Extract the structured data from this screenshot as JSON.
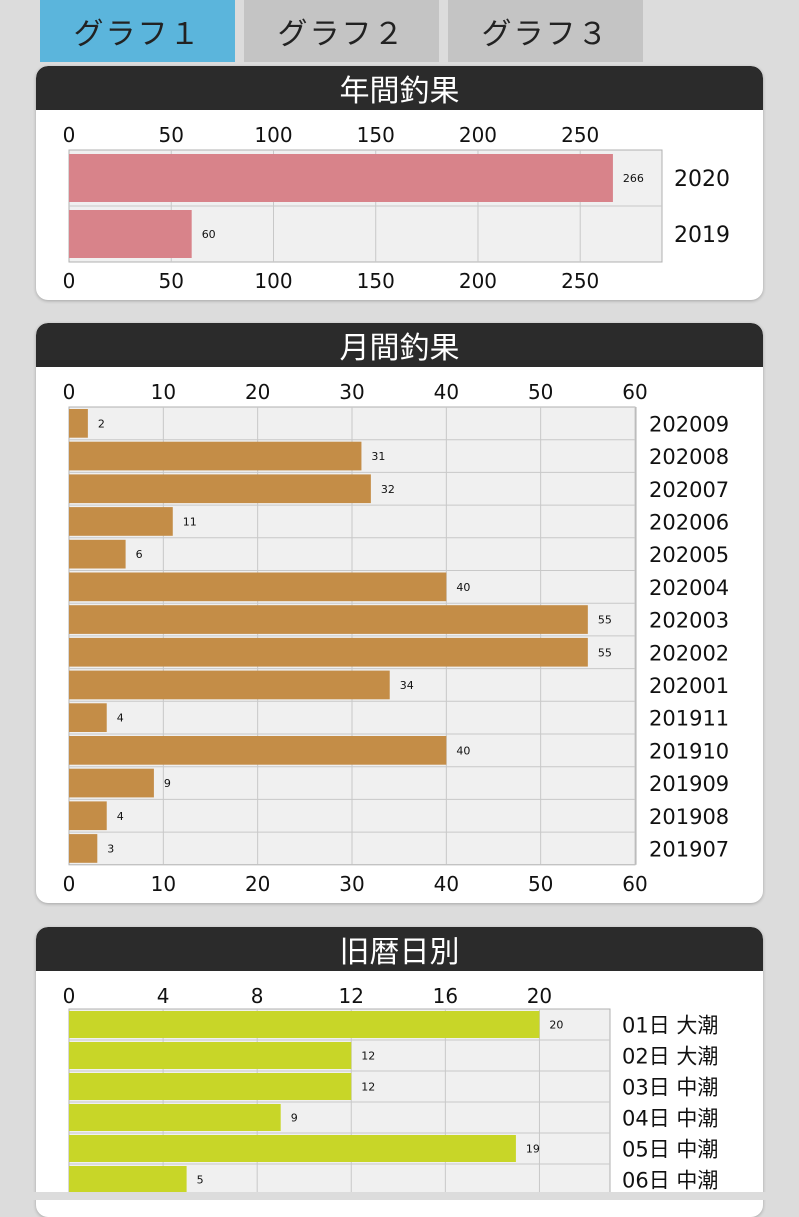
{
  "tabs": [
    {
      "label": "グラフ１",
      "active": true
    },
    {
      "label": "グラフ２",
      "active": false
    },
    {
      "label": "グラフ３",
      "active": false
    }
  ],
  "colors": {
    "tab_active": "#5bb5dc",
    "tab_inactive": "#c4c4c4",
    "header_bg": "#2b2b2b",
    "plot_bg": "#f0f0f0"
  },
  "chart_data": [
    {
      "type": "bar",
      "title": "年間釣果",
      "orientation": "horizontal",
      "categories": [
        "2020",
        "2019"
      ],
      "values": [
        266,
        60
      ],
      "xlim": [
        0,
        290
      ],
      "ticks": [
        0,
        50,
        100,
        150,
        200,
        250
      ],
      "color": "#d8838a",
      "grid": true
    },
    {
      "type": "bar",
      "title": "月間釣果",
      "orientation": "horizontal",
      "categories": [
        "202009",
        "202008",
        "202007",
        "202006",
        "202005",
        "202004",
        "202003",
        "202002",
        "202001",
        "201911",
        "201910",
        "201909",
        "201908",
        "201907"
      ],
      "values": [
        2,
        31,
        32,
        11,
        6,
        40,
        55,
        55,
        34,
        4,
        40,
        9,
        4,
        3
      ],
      "xlim": [
        0,
        60
      ],
      "ticks": [
        0,
        10,
        20,
        30,
        40,
        50,
        60
      ],
      "color": "#c48d47",
      "grid": true
    },
    {
      "type": "bar",
      "title": "旧暦日別",
      "orientation": "horizontal",
      "categories": [
        "01日 大潮",
        "02日 大潮",
        "03日 中潮",
        "04日 中潮",
        "05日 中潮",
        "06日 中潮"
      ],
      "values": [
        20,
        12,
        12,
        9,
        19,
        5
      ],
      "xlim": [
        0,
        23
      ],
      "ticks": [
        0,
        4,
        8,
        12,
        16,
        20
      ],
      "color": "#c8d628",
      "grid": true
    }
  ]
}
